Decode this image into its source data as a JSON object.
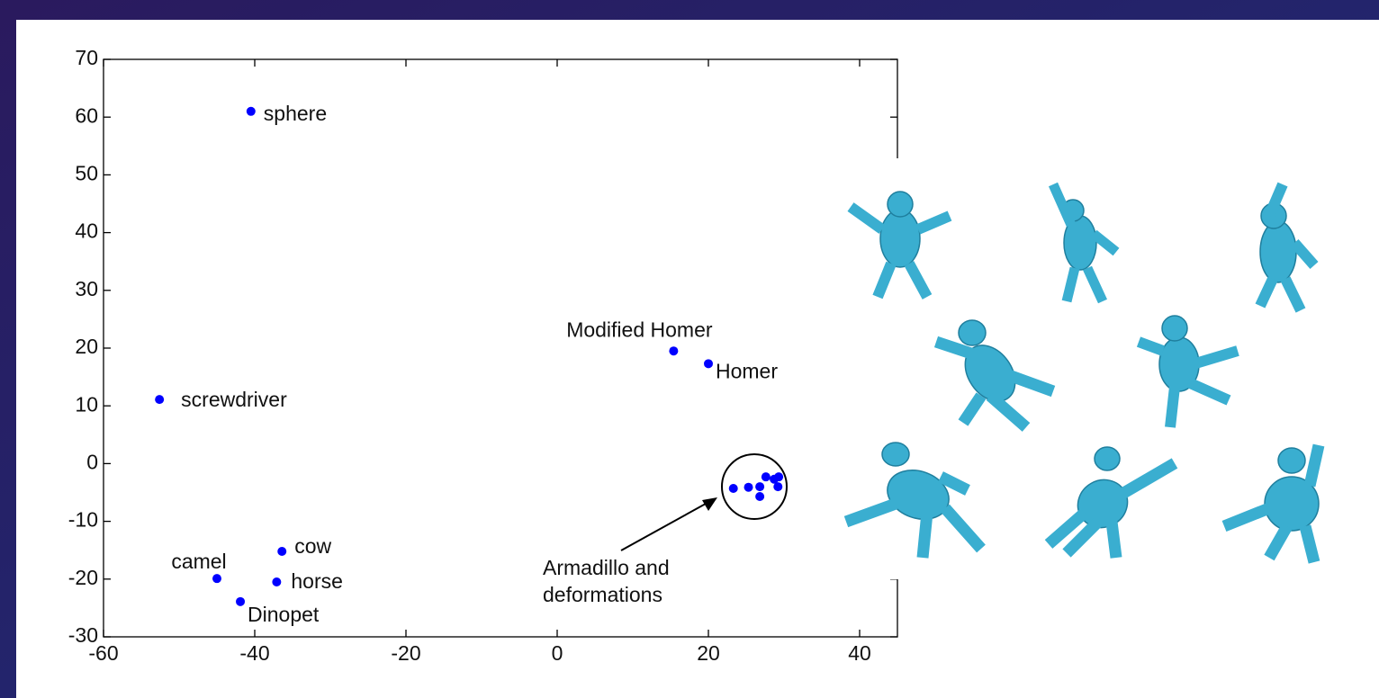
{
  "chart_data": {
    "type": "scatter",
    "x": [
      -40.5,
      -52.6,
      15.4,
      20,
      -36.4,
      -45,
      -37.1,
      -41.9,
      23.3,
      25.3,
      26.8,
      26.8,
      27.6,
      28.7,
      29.3,
      29.2
    ],
    "y": [
      61,
      11.1,
      19.5,
      17.3,
      -15.2,
      -19.9,
      -20.5,
      -23.9,
      -4.3,
      -4.1,
      -4.0,
      -5.7,
      -2.3,
      -2.7,
      -2.3,
      -4.0
    ],
    "point_labels": [
      "sphere",
      "screwdriver",
      "Modified Homer",
      "Homer",
      "cow",
      "camel",
      "horse",
      "Dinopet",
      null,
      null,
      null,
      null,
      null,
      null,
      null,
      null
    ],
    "annotation": [
      "Armadillo and",
      "deformations"
    ],
    "color": "#0000ff",
    "xlim": [
      -60,
      45
    ],
    "xticks": [
      -60,
      -40,
      -20,
      0,
      20,
      40
    ],
    "ylim": [
      -30,
      70
    ],
    "yticks": [
      -30,
      -20,
      -10,
      0,
      10,
      20,
      30,
      40,
      50,
      60,
      70
    ],
    "grid": false
  }
}
